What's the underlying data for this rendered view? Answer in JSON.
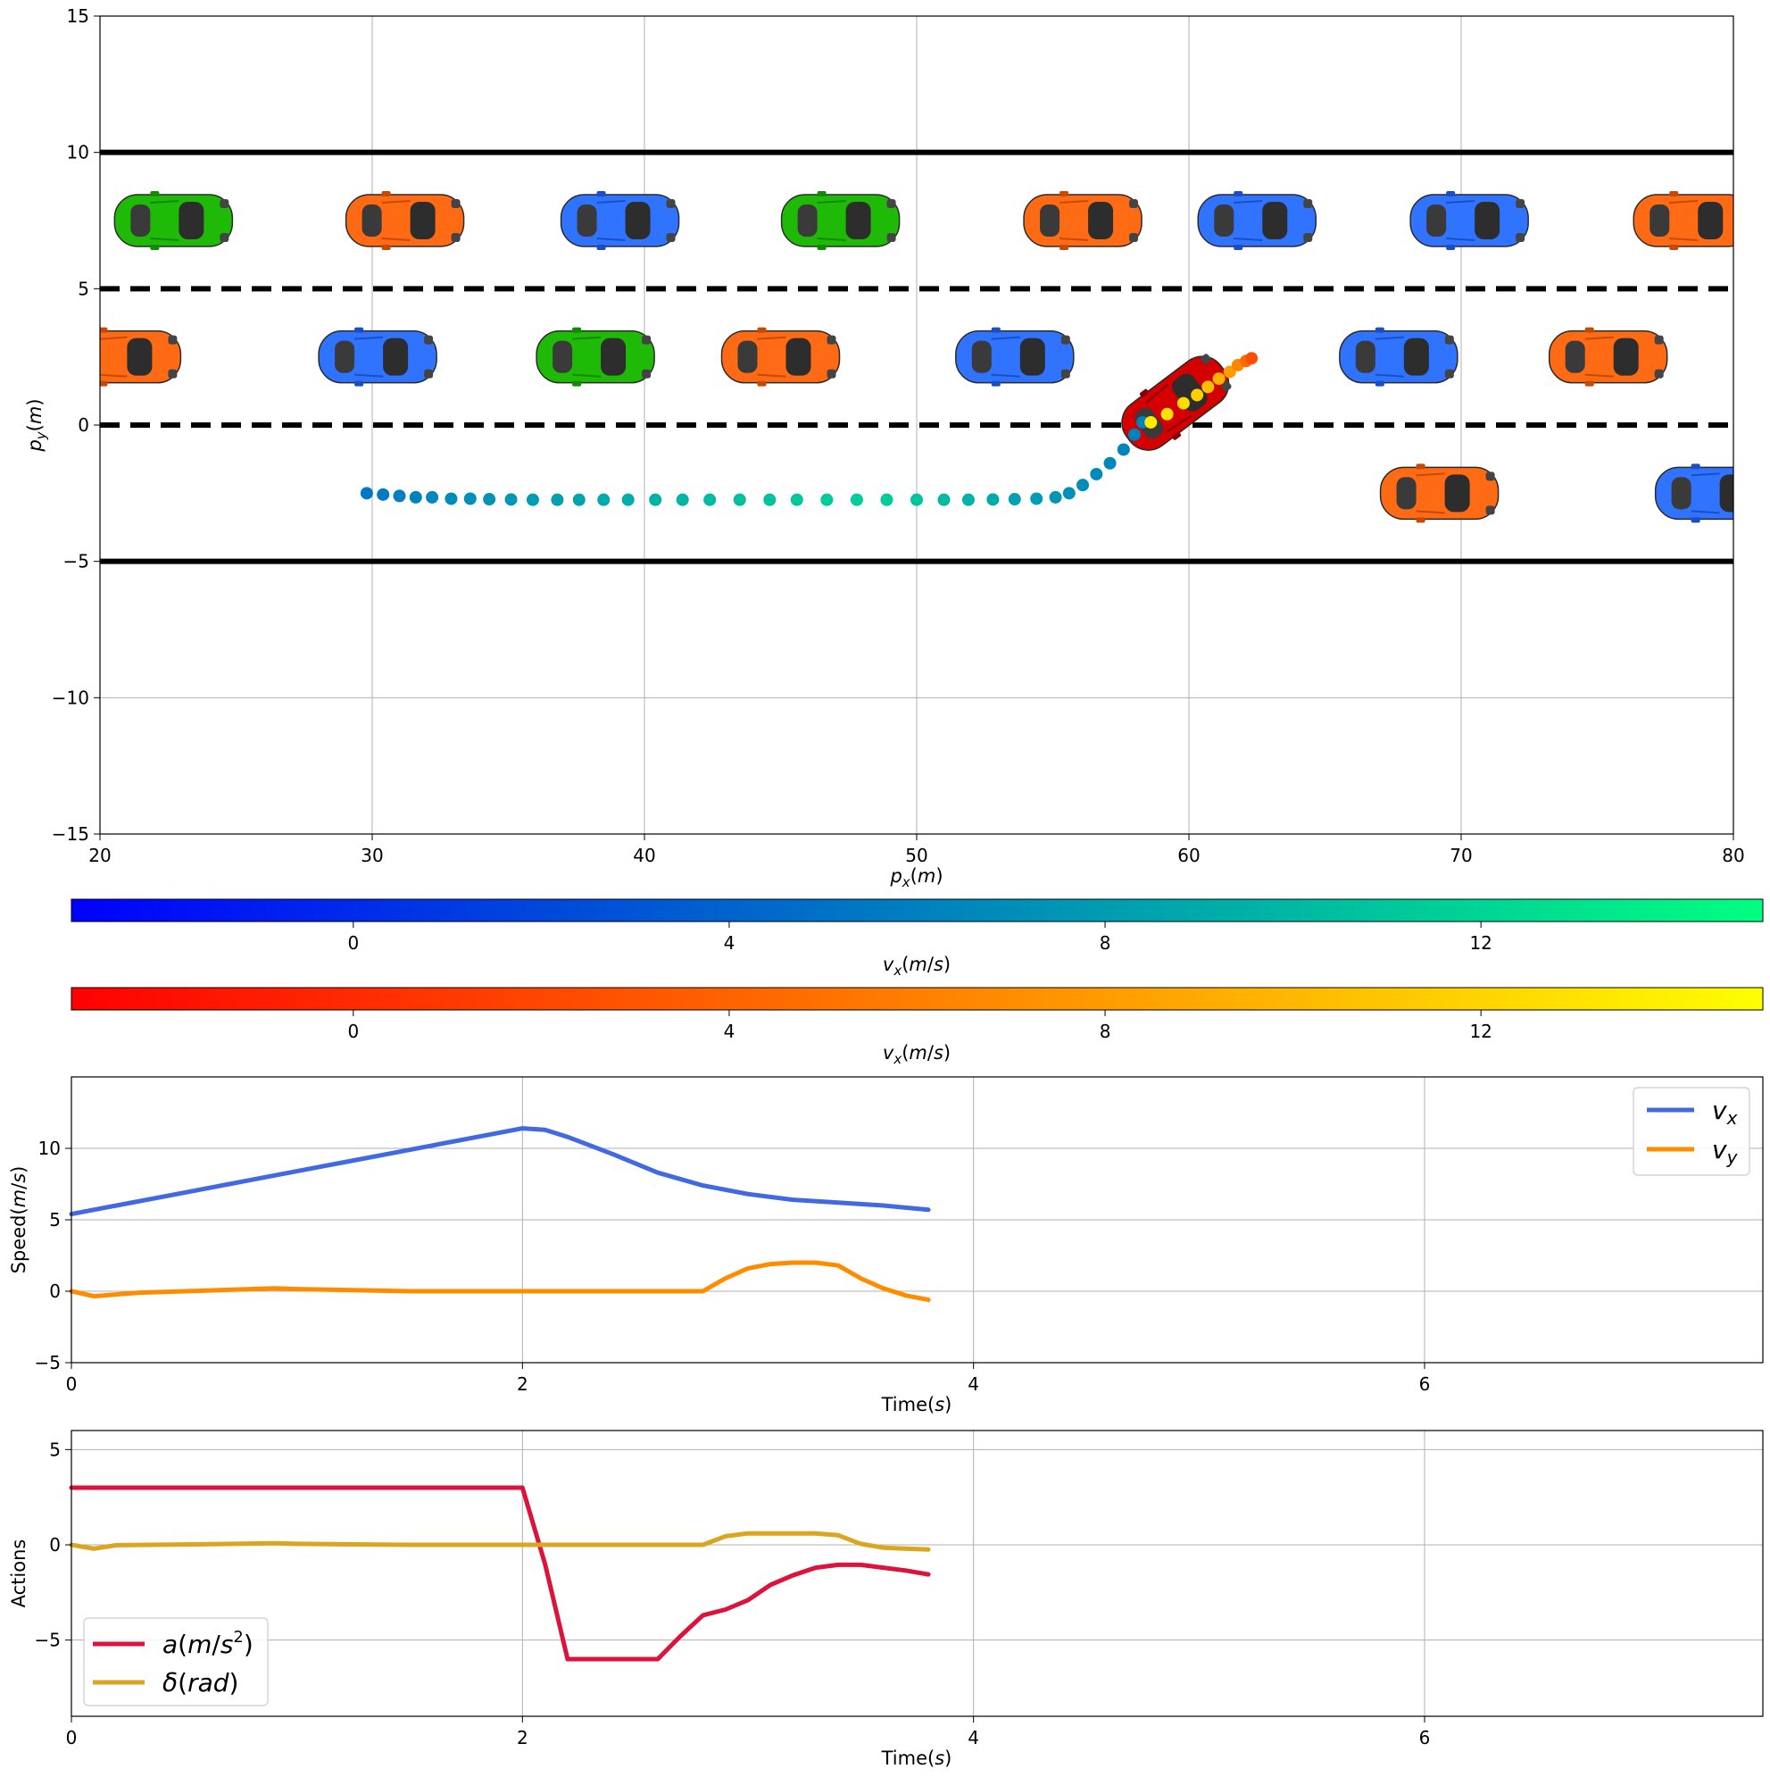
{
  "chart_data": [
    {
      "type": "scatter",
      "panel": "trajectory",
      "xlabel": "p_x(m)",
      "ylabel": "p_y(m)",
      "xlim": [
        20,
        80
      ],
      "ylim": [
        -15,
        15
      ],
      "xticks": [
        "20",
        "30",
        "40",
        "50",
        "60",
        "70",
        "80"
      ],
      "yticks": [
        "−15",
        "−10",
        "−5",
        "0",
        "5",
        "10",
        "15"
      ],
      "grid": "x-only",
      "lane_boundaries_solid": [
        10,
        -5
      ],
      "lane_boundaries_dashed": [
        5,
        0
      ],
      "vehicles": [
        {
          "color": "green",
          "x": 22.7,
          "y": 7.5
        },
        {
          "color": "orange",
          "x": 31.2,
          "y": 7.5
        },
        {
          "color": "blue",
          "x": 39.1,
          "y": 7.5
        },
        {
          "color": "green",
          "x": 47.2,
          "y": 7.5
        },
        {
          "color": "orange",
          "x": 56.1,
          "y": 7.5
        },
        {
          "color": "blue",
          "x": 62.5,
          "y": 7.5
        },
        {
          "color": "blue",
          "x": 70.3,
          "y": 7.5
        },
        {
          "color": "orange",
          "x": 78.5,
          "y": 7.5
        },
        {
          "color": "orange",
          "x": 20.8,
          "y": 2.5
        },
        {
          "color": "blue",
          "x": 30.2,
          "y": 2.5
        },
        {
          "color": "green",
          "x": 38.2,
          "y": 2.5
        },
        {
          "color": "orange",
          "x": 45.0,
          "y": 2.5
        },
        {
          "color": "blue",
          "x": 53.6,
          "y": 2.5
        },
        {
          "color": "blue",
          "x": 67.7,
          "y": 2.5
        },
        {
          "color": "orange",
          "x": 75.4,
          "y": 2.5
        },
        {
          "color": "orange",
          "x": 69.2,
          "y": -2.5
        },
        {
          "color": "blue",
          "x": 79.3,
          "y": -2.5
        }
      ],
      "ego_vehicle": {
        "color": "red",
        "x": 59.5,
        "y": 0.8,
        "heading_deg": 37
      },
      "trajectory_past": {
        "colormap": "winter",
        "x": [
          29.8,
          30.4,
          31.0,
          31.6,
          32.2,
          32.9,
          33.6,
          34.3,
          35.1,
          35.9,
          36.8,
          37.6,
          38.5,
          39.4,
          40.4,
          41.4,
          42.4,
          43.5,
          44.6,
          45.6,
          46.7,
          47.8,
          48.9,
          50.0,
          51.0,
          51.9,
          52.8,
          53.6,
          54.4,
          55.1,
          55.6,
          56.1,
          56.6,
          57.1,
          57.6,
          58.0,
          58.3
        ],
        "y": [
          -2.5,
          -2.55,
          -2.6,
          -2.65,
          -2.65,
          -2.7,
          -2.7,
          -2.72,
          -2.73,
          -2.74,
          -2.74,
          -2.74,
          -2.74,
          -2.74,
          -2.74,
          -2.74,
          -2.74,
          -2.74,
          -2.74,
          -2.74,
          -2.74,
          -2.74,
          -2.74,
          -2.74,
          -2.74,
          -2.74,
          -2.73,
          -2.72,
          -2.7,
          -2.65,
          -2.5,
          -2.2,
          -1.8,
          -1.4,
          -0.9,
          -0.35,
          0.1
        ],
        "vx": [
          5.4,
          5.6,
          5.9,
          6.2,
          6.5,
          6.8,
          7.1,
          7.4,
          7.7,
          8.0,
          8.3,
          8.6,
          8.9,
          9.2,
          9.5,
          9.8,
          10.1,
          10.4,
          10.7,
          11.0,
          11.3,
          11.5,
          11.4,
          10.8,
          10.2,
          9.6,
          9.0,
          8.4,
          8.0,
          7.6,
          7.3,
          7.0,
          6.8,
          6.6,
          6.4,
          6.2,
          6.1
        ]
      },
      "trajectory_future": {
        "colormap": "autumn",
        "x": [
          58.6,
          59.2,
          59.8,
          60.3,
          60.7,
          61.1,
          61.5,
          61.8,
          62.1,
          62.3
        ],
        "y": [
          0.1,
          0.4,
          0.8,
          1.1,
          1.4,
          1.7,
          1.95,
          2.2,
          2.35,
          2.45
        ],
        "vx": [
          13.5,
          13.0,
          12.5,
          11.5,
          10.5,
          9.5,
          8.0,
          6.5,
          4.5,
          2.5
        ]
      }
    },
    {
      "type": "colorbar",
      "panel": "colorbar-past",
      "colormap": "winter",
      "label": "v_x(m/s)",
      "range": [
        -3,
        15
      ],
      "ticks": [
        0,
        4,
        8,
        12
      ]
    },
    {
      "type": "colorbar",
      "panel": "colorbar-future",
      "colormap": "autumn",
      "label": "v_x(m/s)",
      "range": [
        -3,
        15
      ],
      "ticks": [
        0,
        4,
        8,
        12
      ]
    },
    {
      "type": "line",
      "panel": "speed",
      "xlabel": "Time(s)",
      "ylabel": "Speed(m/s)",
      "xlim": [
        0,
        7.5
      ],
      "ylim": [
        -5,
        15
      ],
      "xticks": [
        "0",
        "2",
        "4",
        "6"
      ],
      "yticks": [
        "−5",
        "0",
        "5",
        "10"
      ],
      "grid": "on",
      "legend": "top-right",
      "series": [
        {
          "name": "v_x",
          "color": "#4169e1",
          "x": [
            0,
            0.2,
            0.4,
            0.6,
            0.8,
            1.0,
            1.2,
            1.4,
            1.6,
            1.8,
            2.0,
            2.1,
            2.2,
            2.4,
            2.6,
            2.8,
            3.0,
            3.2,
            3.4,
            3.6,
            3.8
          ],
          "y": [
            5.4,
            6.0,
            6.6,
            7.2,
            7.8,
            8.4,
            9.0,
            9.6,
            10.2,
            10.8,
            11.4,
            11.3,
            10.8,
            9.6,
            8.3,
            7.4,
            6.8,
            6.4,
            6.2,
            6.0,
            5.7
          ]
        },
        {
          "name": "v_y",
          "color": "#ff8c00",
          "x": [
            0,
            0.1,
            0.3,
            0.6,
            0.9,
            1.0,
            1.5,
            2.0,
            2.5,
            2.8,
            2.9,
            3.0,
            3.1,
            3.2,
            3.3,
            3.4,
            3.5,
            3.6,
            3.7,
            3.8
          ],
          "y": [
            0.0,
            -0.35,
            -0.1,
            0.05,
            0.2,
            0.15,
            0.0,
            0.0,
            0.0,
            0.0,
            0.9,
            1.6,
            1.9,
            2.0,
            2.0,
            1.8,
            0.9,
            0.2,
            -0.3,
            -0.6
          ]
        }
      ]
    },
    {
      "type": "line",
      "panel": "actions",
      "xlabel": "Time(s)",
      "ylabel": "Actions",
      "xlim": [
        0,
        7.5
      ],
      "ylim": [
        -9,
        6
      ],
      "xticks": [
        "0",
        "2",
        "4",
        "6"
      ],
      "yticks": [
        "−5",
        "0",
        "5"
      ],
      "grid": "on",
      "legend": "lower-left",
      "series": [
        {
          "name": "a(m/s^2)",
          "color": "#dc143c",
          "x": [
            0,
            2.0,
            2.1,
            2.2,
            2.4,
            2.6,
            2.7,
            2.8,
            2.9,
            3.0,
            3.1,
            3.2,
            3.3,
            3.4,
            3.5,
            3.6,
            3.7,
            3.8
          ],
          "y": [
            3.0,
            3.0,
            -1.0,
            -6.0,
            -6.0,
            -6.0,
            -4.8,
            -3.7,
            -3.4,
            -2.9,
            -2.1,
            -1.6,
            -1.2,
            -1.05,
            -1.05,
            -1.2,
            -1.35,
            -1.55
          ]
        },
        {
          "name": "δ(rad)",
          "color": "#daa520",
          "x": [
            0,
            0.1,
            0.2,
            0.5,
            0.9,
            1.0,
            1.5,
            2.0,
            2.5,
            2.8,
            2.9,
            3.0,
            3.3,
            3.4,
            3.5,
            3.6,
            3.8
          ],
          "y": [
            0.0,
            -0.2,
            -0.02,
            0.02,
            0.08,
            0.05,
            0.0,
            0.0,
            0.0,
            0.0,
            0.45,
            0.6,
            0.6,
            0.5,
            0.05,
            -0.15,
            -0.25
          ]
        }
      ]
    }
  ]
}
